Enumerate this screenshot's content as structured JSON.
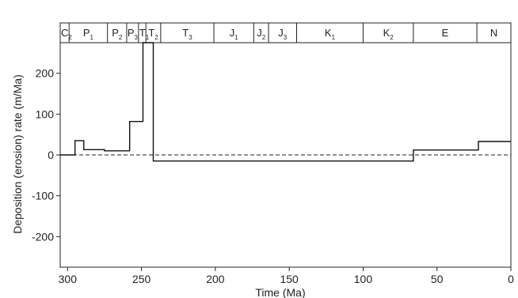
{
  "chart_data": {
    "type": "line",
    "step": true,
    "xlabel": "Time (Ma)",
    "ylabel": "Deposition (erosion) rate (m/Ma)",
    "x_reversed": true,
    "xlim": [
      0,
      305
    ],
    "ylim": [
      -275,
      275
    ],
    "xticks": [
      300,
      250,
      200,
      150,
      100,
      50,
      0
    ],
    "yticks": [
      200,
      100,
      0,
      -100,
      -200
    ],
    "grid": false,
    "reference_line": {
      "y": 0,
      "style": "dashed"
    },
    "periods": [
      {
        "main": "C",
        "sub": "2",
        "start": 305,
        "end": 299
      },
      {
        "main": "P",
        "sub": "1",
        "start": 299,
        "end": 273
      },
      {
        "main": "P",
        "sub": "2",
        "start": 273,
        "end": 260
      },
      {
        "main": "P",
        "sub": "3",
        "start": 260,
        "end": 252
      },
      {
        "main": "T",
        "sub": "1",
        "start": 252,
        "end": 247
      },
      {
        "main": "T",
        "sub": "2",
        "start": 247,
        "end": 237
      },
      {
        "main": "T",
        "sub": "3",
        "start": 237,
        "end": 201
      },
      {
        "main": "J",
        "sub": "1",
        "start": 201,
        "end": 174
      },
      {
        "main": "J",
        "sub": "2",
        "start": 174,
        "end": 164
      },
      {
        "main": "J",
        "sub": "3",
        "start": 164,
        "end": 145
      },
      {
        "main": "K",
        "sub": "1",
        "start": 145,
        "end": 100
      },
      {
        "main": "K",
        "sub": "2",
        "start": 100,
        "end": 66
      },
      {
        "main": "E",
        "sub": "",
        "start": 66,
        "end": 23
      },
      {
        "main": "N",
        "sub": "",
        "start": 23,
        "end": 0
      }
    ],
    "series": [
      {
        "x": [
          305,
          295,
          295,
          289,
          289,
          275,
          275,
          258,
          258,
          249,
          249,
          245,
          245,
          242,
          242,
          66,
          66,
          22,
          22,
          0
        ],
        "y": [
          0,
          0,
          35,
          35,
          13,
          13,
          10,
          10,
          82,
          82,
          275,
          275,
          275,
          275,
          -15,
          -15,
          12,
          12,
          33,
          33
        ]
      }
    ]
  }
}
